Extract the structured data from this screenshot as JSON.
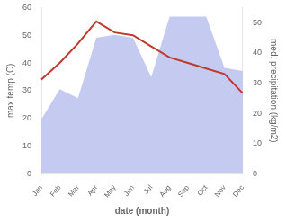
{
  "chart_data": {
    "type": "line",
    "categories": [
      "Jan",
      "Feb",
      "Mar",
      "Apr",
      "May",
      "Jun",
      "Jul",
      "Aug",
      "Sep",
      "Oct",
      "Nov",
      "Dec"
    ],
    "series": [
      {
        "name": "med. precipitation",
        "type": "area",
        "axis": "y2",
        "color": "#c5caf0",
        "values": [
          18,
          28,
          25,
          45,
          46,
          45,
          32,
          52,
          52,
          52,
          35,
          34
        ]
      },
      {
        "name": "max temp",
        "type": "line",
        "axis": "y",
        "color": "#c0392b",
        "values": [
          34,
          40,
          47,
          55,
          51,
          50,
          46,
          42,
          40,
          38,
          36,
          29
        ]
      }
    ],
    "xlabel": "date (month)",
    "ylabel": "max temp (C)",
    "y2label": "med. precipitation (kg/m2)",
    "ylim": [
      0,
      60
    ],
    "yticks": [
      0,
      10,
      20,
      30,
      40,
      50,
      60
    ],
    "y2lim": [
      0,
      55
    ],
    "y2ticks": [
      0,
      10,
      20,
      30,
      40,
      50
    ],
    "grid": false
  }
}
